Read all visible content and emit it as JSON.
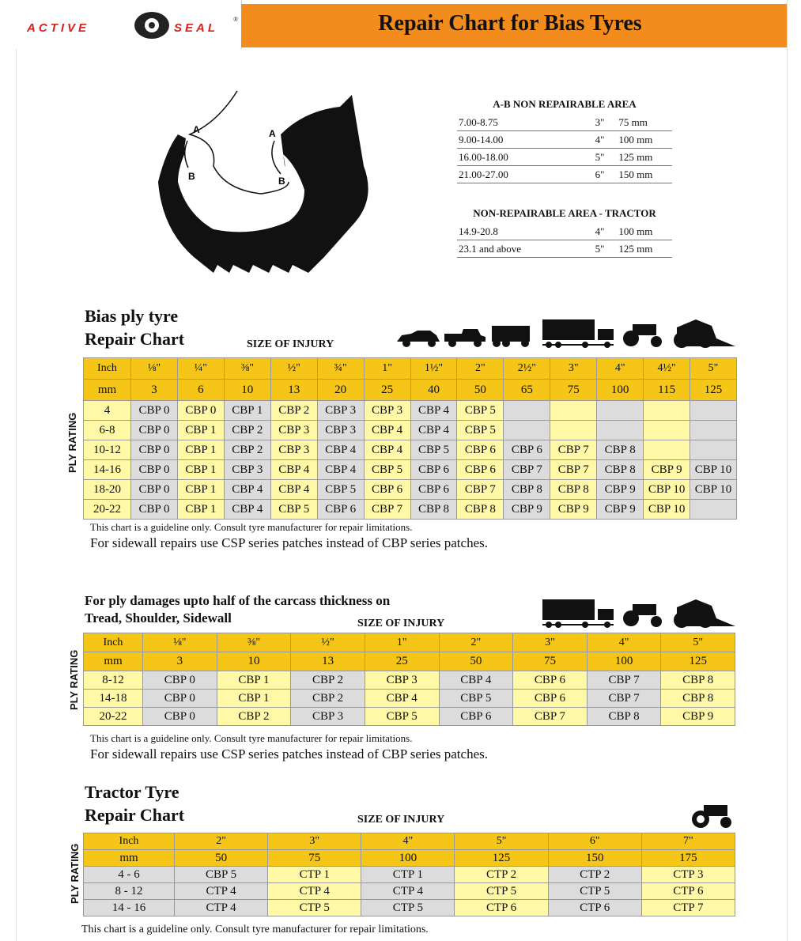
{
  "header": {
    "logo_left": "ACTIVE",
    "logo_right": "SEAL",
    "logo_mark": "®",
    "title": "Repair Chart for Bias Tyres"
  },
  "diagram": {
    "labels": [
      "A",
      "B",
      "A",
      "B"
    ]
  },
  "ab_table": {
    "title": "A-B NON REPAIRABLE AREA",
    "rows": [
      [
        "7.00-8.75",
        "3\"",
        "75 mm"
      ],
      [
        "9.00-14.00",
        "4\"",
        "100 mm"
      ],
      [
        "16.00-18.00",
        "5\"",
        "125 mm"
      ],
      [
        "21.00-27.00",
        "6\"",
        "150 mm"
      ]
    ]
  },
  "tractor_area_table": {
    "title": "NON-REPAIRABLE AREA - TRACTOR",
    "rows": [
      [
        "14.9-20.8",
        "4\"",
        "100 mm"
      ],
      [
        "23.1 and above",
        "5\"",
        "125 mm"
      ]
    ]
  },
  "bias_chart": {
    "title_lines": [
      "Bias ply tyre",
      "Repair Chart"
    ],
    "size_label": "SIZE OF INJURY",
    "ply_label": "PLY RATING",
    "inch_row": [
      "Inch",
      "⅛\"",
      "¼\"",
      "⅜\"",
      "½\"",
      "¾\"",
      "1\"",
      "1½\"",
      "2\"",
      "2½\"",
      "3\"",
      "4\"",
      "4½\"",
      "5\""
    ],
    "mm_row": [
      "mm",
      "3",
      "6",
      "10",
      "13",
      "20",
      "25",
      "40",
      "50",
      "65",
      "75",
      "100",
      "115",
      "125"
    ],
    "rows": [
      [
        "4",
        "CBP 0",
        "CBP 0",
        "CBP 1",
        "CBP 2",
        "CBP 3",
        "CBP 3",
        "CBP 4",
        "CBP 5",
        null,
        null,
        null,
        null,
        null
      ],
      [
        "6-8",
        "CBP 0",
        "CBP 1",
        "CBP 2",
        "CBP 3",
        "CBP 3",
        "CBP 4",
        "CBP 4",
        "CBP 5",
        null,
        null,
        null,
        null,
        null
      ],
      [
        "10-12",
        "CBP 0",
        "CBP 1",
        "CBP 2",
        "CBP 3",
        "CBP 4",
        "CBP 4",
        "CBP 5",
        "CBP 6",
        "CBP 6",
        "CBP 7",
        "CBP 8",
        null,
        null
      ],
      [
        "14-16",
        "CBP 0",
        "CBP 1",
        "CBP 3",
        "CBP 4",
        "CBP 4",
        "CBP 5",
        "CBP 6",
        "CBP 6",
        "CBP 7",
        "CBP 7",
        "CBP 8",
        "CBP 9",
        "CBP 10"
      ],
      [
        "18-20",
        "CBP 0",
        "CBP 1",
        "CBP 4",
        "CBP 4",
        "CBP 5",
        "CBP 6",
        "CBP 6",
        "CBP 7",
        "CBP 8",
        "CBP 8",
        "CBP 9",
        "CBP 10",
        "CBP 10"
      ],
      [
        "20-22",
        "CBP 0",
        "CBP 1",
        "CBP 4",
        "CBP 5",
        "CBP 6",
        "CBP 7",
        "CBP 8",
        "CBP 8",
        "CBP 9",
        "CBP 9",
        "CBP 9",
        "CBP 10",
        null
      ]
    ],
    "notes": [
      "This chart is a guideline only. Consult tyre manufacturer for repair limitations.",
      "For sidewall repairs use CSP series patches instead of CBP series patches."
    ]
  },
  "ply_damage_chart": {
    "title_lines": [
      "For ply damages upto half of the carcass thickness on",
      "Tread, Shoulder, Sidewall"
    ],
    "size_label": "SIZE OF INJURY",
    "ply_label": "PLY RATING",
    "inch_row": [
      "Inch",
      "⅛\"",
      "⅜\"",
      "½\"",
      "1\"",
      "2\"",
      "3\"",
      "4\"",
      "5\""
    ],
    "mm_row": [
      "mm",
      "3",
      "10",
      "13",
      "25",
      "50",
      "75",
      "100",
      "125"
    ],
    "rows": [
      [
        "8-12",
        "CBP 0",
        "CBP 1",
        "CBP 2",
        "CBP 3",
        "CBP 4",
        "CBP 6",
        "CBP 7",
        "CBP 8"
      ],
      [
        "14-18",
        "CBP 0",
        "CBP 1",
        "CBP 2",
        "CBP 4",
        "CBP 5",
        "CBP 6",
        "CBP 7",
        "CBP 8"
      ],
      [
        "20-22",
        "CBP 0",
        "CBP 2",
        "CBP 3",
        "CBP 5",
        "CBP 6",
        "CBP 7",
        "CBP 8",
        "CBP 9"
      ]
    ],
    "notes": [
      "This chart is a guideline only. Consult tyre manufacturer for repair limitations.",
      "For sidewall repairs use CSP series patches instead of CBP series patches."
    ]
  },
  "tractor_chart": {
    "title_lines": [
      "Tractor Tyre",
      "Repair Chart"
    ],
    "size_label": "SIZE OF INJURY",
    "ply_label": "PLY RATING",
    "inch_row": [
      "Inch",
      "2\"",
      "3\"",
      "4\"",
      "5\"",
      "6\"",
      "7\""
    ],
    "mm_row": [
      "mm",
      "50",
      "75",
      "100",
      "125",
      "150",
      "175"
    ],
    "rows": [
      [
        "4 - 6",
        "CBP 5",
        "CTP 1",
        "CTP 1",
        "CTP 2",
        "CTP 2",
        "CTP 3"
      ],
      [
        "8 - 12",
        "CTP 4",
        "CTP 4",
        "CTP 4",
        "CTP 5",
        "CTP 5",
        "CTP 6"
      ],
      [
        "14 - 16",
        "CTP 4",
        "CTP 5",
        "CTP 5",
        "CTP 6",
        "CTP 6",
        "CTP 7"
      ]
    ],
    "notes": [
      "This chart is a guideline only. Consult tyre manufacturer for repair limitations."
    ]
  }
}
